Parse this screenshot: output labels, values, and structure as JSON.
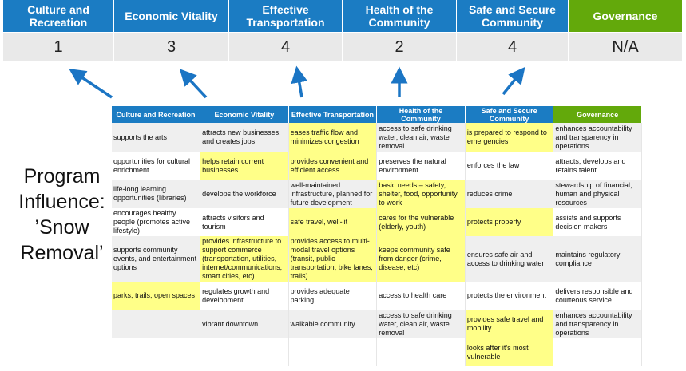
{
  "categories": [
    {
      "label": "Culture and Recreation",
      "score": "1"
    },
    {
      "label": "Economic Vitality",
      "score": "3"
    },
    {
      "label": "Effective Transportation",
      "score": "4"
    },
    {
      "label": "Health of the Community",
      "score": "2"
    },
    {
      "label": "Safe and Secure Community",
      "score": "4"
    },
    {
      "label": "Governance",
      "score": "N/A"
    }
  ],
  "title": "Program Influence: ’Snow Removal’",
  "table": {
    "headers": [
      "Culture and Recreation",
      "Economic Vitality",
      "Effective Transportation",
      "Health of the Community",
      "Safe and Secure Community",
      "Governance"
    ],
    "highlight_color": "#ffff88",
    "rows": [
      {
        "cells": [
          "supports the arts",
          "attracts new businesses, and creates jobs",
          "eases traffic flow and minimizes congestion",
          "access to safe drinking water, clean air, waste removal",
          "is prepared to respond to emergencies",
          "enhances accountability and transparency in operations"
        ],
        "highlighted": [
          2,
          4
        ]
      },
      {
        "cells": [
          "opportunities for cultural enrichment",
          "helps retain current businesses",
          "provides convenient and efficient access",
          "preserves the natural environment",
          "enforces the law",
          "attracts, develops and retains talent"
        ],
        "highlighted": [
          1,
          2
        ]
      },
      {
        "cells": [
          "life-long learning opportunities (libraries)",
          "develops the workforce",
          "well-maintained infrastructure, planned for future development",
          "basic needs – safety, shelter, food, opportunity to work",
          "reduces crime",
          "stewardship of financial, human and physical resources"
        ],
        "highlighted": [
          3
        ]
      },
      {
        "cells": [
          "encourages healthy people (promotes active lifestyle)",
          "attracts visitors and tourism",
          "safe travel, well-lit",
          "cares for the vulnerable (elderly, youth)",
          "protects property",
          "assists and supports decision makers"
        ],
        "highlighted": [
          2,
          3,
          4
        ]
      },
      {
        "cells": [
          "supports community events, and entertainment options",
          "provides infrastructure to support commerce (transportation, utilities, internet/communications, smart cities, etc)",
          "provides access to multi-modal travel options (transit, public transportation, bike lanes, trails)",
          "keeps community safe from danger (crime, disease, etc)",
          "ensures safe air and access to drinking water",
          "maintains regulatory compliance"
        ],
        "highlighted": [
          1,
          2,
          3
        ]
      },
      {
        "cells": [
          "parks, trails, open spaces",
          "regulates growth and development",
          "provides adequate parking",
          "access to health care",
          "protects the environment",
          "delivers responsible and courteous service"
        ],
        "highlighted": [
          0
        ]
      },
      {
        "cells": [
          "",
          "vibrant downtown",
          "walkable community",
          "access to safe drinking water, clean air, waste removal",
          "provides safe travel and mobility",
          "enhances accountability and transparency in operations"
        ],
        "highlighted": [
          4
        ]
      },
      {
        "cells": [
          "",
          "",
          "",
          "",
          "looks after it’s most vulnerable",
          ""
        ],
        "highlighted": [
          4
        ]
      }
    ]
  },
  "colors": {
    "header_blue": "#1b7cc3",
    "governance_green": "#63a90b",
    "arrow": "#1b75c4"
  }
}
